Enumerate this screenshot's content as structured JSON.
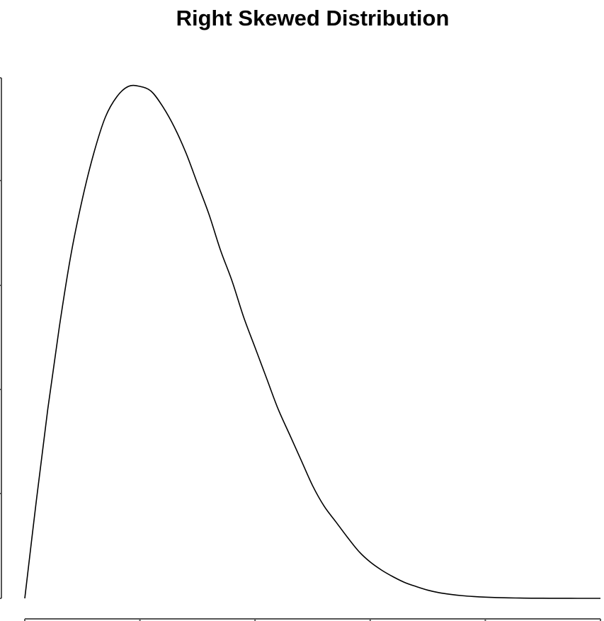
{
  "chart_data": {
    "type": "line",
    "title": "Right Skewed Distribution",
    "xlabel": "",
    "ylabel": "",
    "xlim": [
      0,
      5
    ],
    "ylim": [
      0,
      1
    ],
    "x_ticks_count": 6,
    "y_ticks_count": 6,
    "grid": false,
    "axes": "left-and-bottom",
    "series": [
      {
        "x": [
          0,
          0.1,
          0.2,
          0.3,
          0.4,
          0.5,
          0.6,
          0.7,
          0.8,
          0.9,
          1.0,
          1.1,
          1.2,
          1.3,
          1.4,
          1.5,
          1.6,
          1.7,
          1.8,
          1.9,
          2.0,
          2.1,
          2.2,
          2.3,
          2.4,
          2.5,
          2.6,
          2.7,
          2.8,
          2.9,
          3.0,
          3.1,
          3.2,
          3.3,
          3.4,
          3.5,
          3.6,
          3.7,
          3.8,
          3.9,
          4.0,
          4.1,
          4.2,
          4.3,
          4.4,
          4.5,
          4.6,
          4.7,
          4.8,
          4.9,
          5.0
        ],
        "values": [
          0,
          0.19,
          0.37,
          0.53,
          0.67,
          0.78,
          0.87,
          0.94,
          0.98,
          1.0,
          1.0,
          0.99,
          0.96,
          0.92,
          0.87,
          0.81,
          0.75,
          0.68,
          0.62,
          0.55,
          0.49,
          0.43,
          0.37,
          0.32,
          0.27,
          0.22,
          0.18,
          0.15,
          0.12,
          0.092,
          0.071,
          0.055,
          0.042,
          0.031,
          0.023,
          0.016,
          0.011,
          0.0077,
          0.0052,
          0.0035,
          0.0023,
          0.0015,
          0.0009,
          0.0006,
          0.0003,
          0.0002,
          0.0001,
          0.0001,
          0,
          0,
          0
        ],
        "color": "#000000"
      }
    ]
  }
}
